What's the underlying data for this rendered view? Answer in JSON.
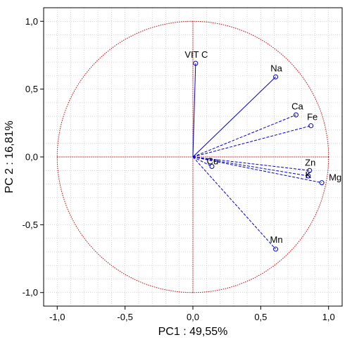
{
  "chart_data": {
    "type": "scatter",
    "subtype": "pca-correlation-circle",
    "title": "",
    "xlabel": "PC1 : 49,55%",
    "ylabel": "PC 2 : 16,81%",
    "xlim": [
      -1.1,
      1.1
    ],
    "ylim": [
      -1.1,
      1.1
    ],
    "xticks": [
      "-1,0",
      "-0,5",
      "0,0",
      "0,5",
      "1,0"
    ],
    "yticks": [
      "1,0",
      "0,5",
      "0,0",
      "-0,5",
      "-1,0"
    ],
    "xtick_values": [
      -1.0,
      -0.5,
      0.0,
      0.5,
      1.0
    ],
    "ytick_values": [
      1.0,
      0.5,
      0.0,
      -0.5,
      -1.0
    ],
    "grid": true,
    "unit_circle": true,
    "colors": {
      "vectors": "#0000cc",
      "circle": "#cc0000",
      "grid": "#b8b8b8"
    },
    "points": [
      {
        "label": "VIT C",
        "x": 0.02,
        "y": 0.69,
        "line": "solid"
      },
      {
        "label": "Na",
        "x": 0.61,
        "y": 0.59,
        "line": "solid"
      },
      {
        "label": "Ca",
        "x": 0.76,
        "y": 0.31,
        "line": "dashed"
      },
      {
        "label": "Fe",
        "x": 0.87,
        "y": 0.23,
        "line": "dashed"
      },
      {
        "label": "Zn",
        "x": 0.86,
        "y": -0.1,
        "line": "dashed"
      },
      {
        "label": "K",
        "x": 0.85,
        "y": -0.14,
        "line": "dashed"
      },
      {
        "label": "Mg",
        "x": 0.95,
        "y": -0.19,
        "line": "dashed"
      },
      {
        "label": "Cu",
        "x": 0.14,
        "y": -0.07,
        "line": "dashed"
      },
      {
        "label": "Mn",
        "x": 0.61,
        "y": -0.68,
        "line": "dashed"
      }
    ]
  }
}
